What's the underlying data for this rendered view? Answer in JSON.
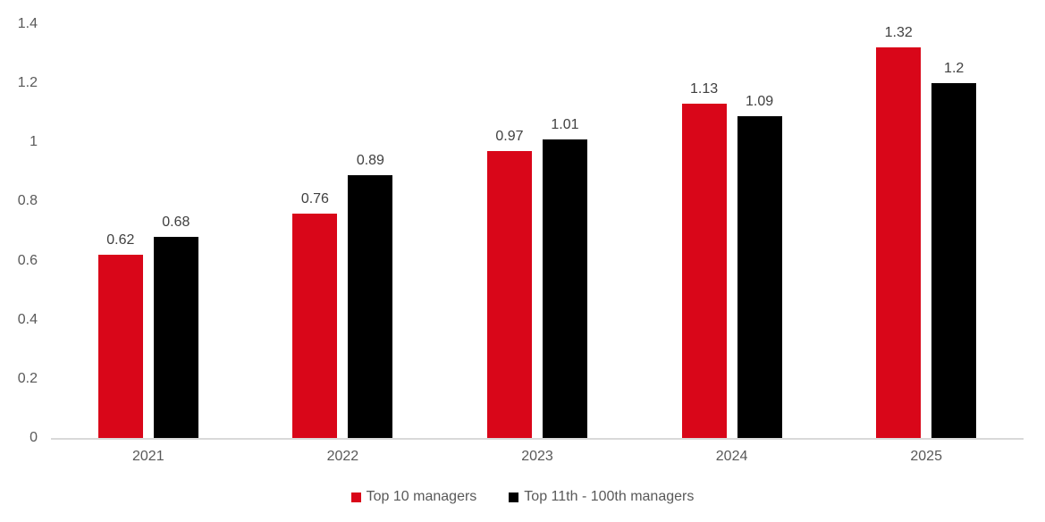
{
  "chart_data": {
    "type": "bar",
    "title": "",
    "xlabel": "",
    "ylabel": "",
    "categories": [
      "2021",
      "2022",
      "2023",
      "2024",
      "2025"
    ],
    "series": [
      {
        "id": "top-10-managers",
        "name": "Top 10 managers",
        "color": "#d90619",
        "values": [
          0.62,
          0.76,
          0.97,
          1.13,
          1.32
        ],
        "labels": [
          "0.62",
          "0.76",
          "0.97",
          "1.13",
          "1.32"
        ]
      },
      {
        "id": "top-11th-100th-managers",
        "name": "Top 11th - 100th managers",
        "color": "#000000",
        "values": [
          0.68,
          0.89,
          1.01,
          1.09,
          1.2
        ],
        "labels": [
          "0.68",
          "0.89",
          "1.01",
          "1.09",
          "1.2"
        ]
      }
    ],
    "y_ticks": [
      "0",
      "0.2",
      "0.4",
      "0.6",
      "0.8",
      "1",
      "1.2",
      "1.4"
    ],
    "ylim": [
      0,
      1.4
    ],
    "grid": false,
    "legend_position": "bottom"
  },
  "colors": {
    "background": "#ffffff",
    "axis_line": "#d9d9d9",
    "tick_label": "#595959",
    "data_label": "#404040",
    "legend_text": "#595959"
  }
}
